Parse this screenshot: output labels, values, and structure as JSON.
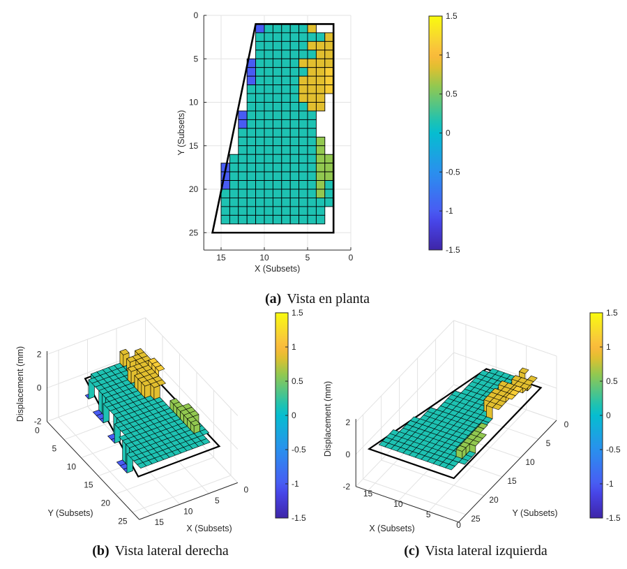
{
  "chart_data": {
    "type": "heatmap",
    "colormap": "parula",
    "colorbar": {
      "range": [
        -1.5,
        1.5
      ],
      "ticks": [
        -1.5,
        -1,
        -0.5,
        0,
        0.5,
        1,
        1.5
      ]
    },
    "grid": {
      "x_centers": [
        14.5,
        13.5,
        12.5,
        11.5,
        10.5,
        9.5,
        8.5,
        7.5,
        6.5,
        5.5,
        4.5,
        3.5,
        2.5
      ],
      "y_centers": [
        1.5,
        2.5,
        3.5,
        4.5,
        5.5,
        6.5,
        7.5,
        8.5,
        9.5,
        10.5,
        11.5,
        12.5,
        13.5,
        14.5,
        15.5,
        16.5,
        17.5,
        18.5,
        19.5,
        20.5,
        21.5,
        22.5,
        23.5
      ],
      "values": [
        [
          null,
          null,
          null,
          null,
          -1,
          0.15,
          0.15,
          0.15,
          0.15,
          0.15,
          0.85,
          null,
          null
        ],
        [
          null,
          null,
          null,
          null,
          0.15,
          0.15,
          0.15,
          0.15,
          0.15,
          0.15,
          0.15,
          0.15,
          0.85
        ],
        [
          null,
          null,
          null,
          null,
          0.15,
          0.15,
          0.15,
          0.15,
          0.15,
          0.15,
          0.85,
          0.85,
          0.85
        ],
        [
          null,
          null,
          null,
          null,
          0.15,
          0.15,
          0.15,
          0.15,
          0.15,
          0.15,
          0.15,
          0.85,
          0.85
        ],
        [
          null,
          null,
          null,
          -1,
          0.15,
          0.15,
          0.15,
          0.15,
          0.15,
          0.85,
          0.85,
          0.85,
          0.85
        ],
        [
          null,
          null,
          null,
          -1,
          0.15,
          0.15,
          0.15,
          0.15,
          0.15,
          0.15,
          0.85,
          0.85,
          1.15
        ],
        [
          null,
          null,
          null,
          -1,
          0.15,
          0.15,
          0.15,
          0.15,
          0.15,
          0.85,
          0.85,
          0.85,
          1.15
        ],
        [
          null,
          null,
          null,
          0.15,
          0.15,
          0.15,
          0.15,
          0.15,
          0.15,
          0.85,
          0.85,
          0.85,
          1.15
        ],
        [
          null,
          null,
          null,
          0.15,
          0.15,
          0.15,
          0.15,
          0.15,
          0.15,
          0.85,
          0.85,
          0.85,
          null
        ],
        [
          null,
          null,
          null,
          0.15,
          0.15,
          0.15,
          0.15,
          0.15,
          0.15,
          0.15,
          0.85,
          0.85,
          null
        ],
        [
          null,
          null,
          -1,
          0.15,
          0.15,
          0.15,
          0.15,
          0.15,
          0.15,
          0.15,
          0.15,
          null,
          null
        ],
        [
          null,
          null,
          -1,
          0.15,
          0.15,
          0.15,
          0.15,
          0.15,
          0.15,
          0.15,
          0.15,
          null,
          null
        ],
        [
          null,
          null,
          0.15,
          0.15,
          0.15,
          0.15,
          0.15,
          0.15,
          0.15,
          0.15,
          0.15,
          null,
          null
        ],
        [
          null,
          null,
          0.15,
          0.15,
          0.15,
          0.15,
          0.15,
          0.15,
          0.15,
          0.15,
          0.15,
          0.6,
          null
        ],
        [
          null,
          null,
          0.15,
          0.15,
          0.15,
          0.15,
          0.15,
          0.15,
          0.15,
          0.15,
          0.15,
          0.6,
          null
        ],
        [
          null,
          0.15,
          0.15,
          0.15,
          0.15,
          0.15,
          0.15,
          0.15,
          0.15,
          0.15,
          0.15,
          0.6,
          0.6
        ],
        [
          -1,
          0.15,
          0.15,
          0.15,
          0.15,
          0.15,
          0.15,
          0.15,
          0.15,
          0.15,
          0.15,
          0.6,
          0.6
        ],
        [
          -1,
          0.15,
          0.15,
          0.15,
          0.15,
          0.15,
          0.15,
          0.15,
          0.15,
          0.15,
          0.15,
          0.6,
          0.6
        ],
        [
          -1,
          0.15,
          0.15,
          0.15,
          0.15,
          0.15,
          0.15,
          0.15,
          0.15,
          0.15,
          0.15,
          0.6,
          0.15
        ],
        [
          0.15,
          0.15,
          0.15,
          0.15,
          0.15,
          0.15,
          0.15,
          0.15,
          0.15,
          0.15,
          0.15,
          0.6,
          0.15
        ],
        [
          0.15,
          0.15,
          0.15,
          0.15,
          0.15,
          0.15,
          0.15,
          0.15,
          0.15,
          0.15,
          0.15,
          0.15,
          0.15
        ],
        [
          0.15,
          0.15,
          0.15,
          0.15,
          0.15,
          0.15,
          0.15,
          0.15,
          0.15,
          0.15,
          0.15,
          0.15,
          null
        ],
        [
          0.15,
          0.15,
          0.15,
          0.15,
          0.15,
          0.15,
          0.15,
          0.15,
          0.15,
          0.15,
          0.15,
          0.15,
          null
        ]
      ]
    },
    "outline": [
      [
        11,
        1
      ],
      [
        2,
        1
      ],
      [
        2,
        25
      ],
      [
        16,
        25
      ]
    ],
    "panels": [
      {
        "caption_label": "(a)",
        "caption_text": "Vista en planta",
        "view": "top",
        "xlabel": "X (Subsets)",
        "ylabel": "Y (Subsets)",
        "xlim": [
          0,
          17
        ],
        "ylim": [
          0,
          27
        ],
        "x_reversed": true,
        "y_reversed": true,
        "xticks": [
          15,
          10,
          5,
          0
        ],
        "yticks": [
          0,
          5,
          10,
          15,
          20,
          25
        ],
        "grid": true
      },
      {
        "caption_label": "(b)",
        "caption_text": "Vista lateral derecha",
        "view": "3d-right",
        "xlabel": "X (Subsets)",
        "ylabel": "Y (Subsets)",
        "zlabel": "Displacement (mm)",
        "xlim": [
          0,
          17
        ],
        "ylim": [
          0,
          27
        ],
        "zlim": [
          -2,
          2
        ],
        "xticks": [
          0,
          5,
          10,
          15
        ],
        "yticks": [
          0,
          5,
          10,
          15,
          20,
          25
        ],
        "zticks": [
          -2,
          0,
          2
        ],
        "grid": true
      },
      {
        "caption_label": "(c)",
        "caption_text": "Vista lateral izquierda",
        "view": "3d-left",
        "xlabel": "X (Subsets)",
        "ylabel": "Y (Subsets)",
        "zlabel": "Displacement (mm)",
        "xlim": [
          0,
          17
        ],
        "ylim": [
          0,
          27
        ],
        "zlim": [
          -2,
          2
        ],
        "xticks": [
          0,
          5,
          10,
          15
        ],
        "yticks": [
          0,
          5,
          10,
          15,
          20,
          25
        ],
        "zticks": [
          -2,
          0,
          2
        ],
        "grid": true
      }
    ]
  }
}
